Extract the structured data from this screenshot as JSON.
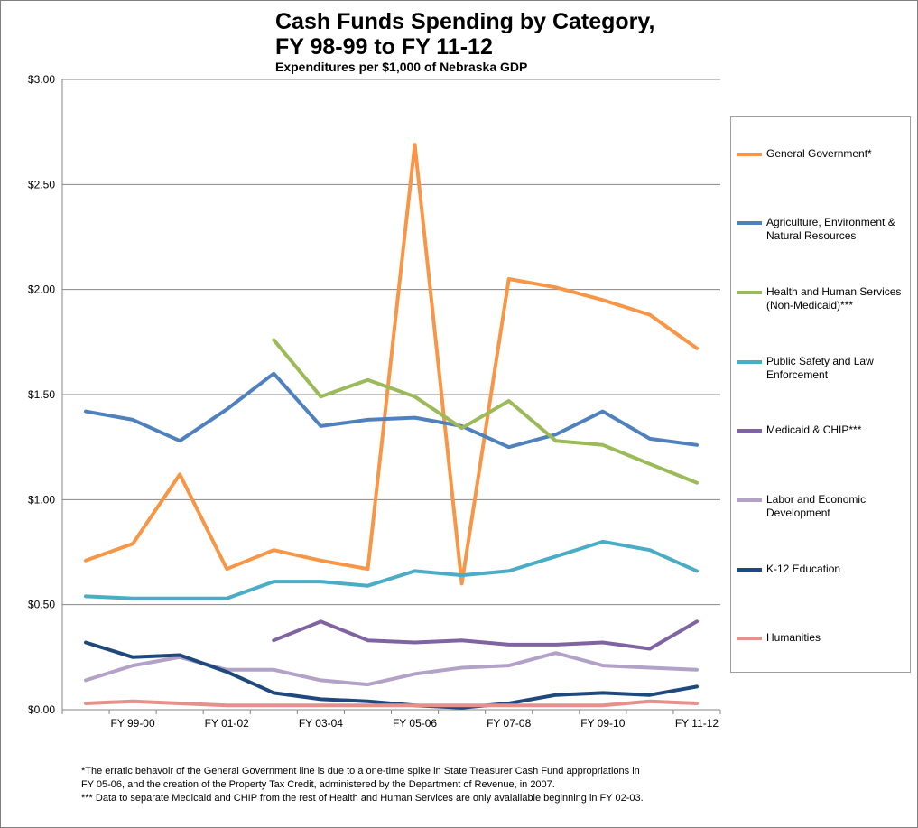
{
  "title_lines": [
    "Cash Funds Spending by Category,",
    "FY 98-99 to FY 11-12"
  ],
  "subtitle": "Expenditures per $1,000 of Nebraska GDP",
  "footnotes": [
    "*The erratic behavoir of the General Government line is due to a one-time spike in State Treasurer Cash Fund appropriations in",
    "FY 05-06, and the creation of the Property Tax Credit, administered by the Department of Revenue, in 2007.",
    "*** Data to separate Medicaid and CHIP from the rest of Health and Human Services are only avaiailable beginning in FY 02-03."
  ],
  "chart_data": {
    "type": "line",
    "x": [
      "FY 98-99",
      "FY 99-00",
      "FY 00-01",
      "FY 01-02",
      "FY 02-03",
      "FY 03-04",
      "FY 04-05",
      "FY 05-06",
      "FY 06-07",
      "FY 07-08",
      "FY 08-09",
      "FY 09-10",
      "FY 10-11",
      "FY 11-12"
    ],
    "x_tick_labels": [
      "FY 99-00",
      "FY 01-02",
      "FY 03-04",
      "FY 05-06",
      "FY 07-08",
      "FY 09-10",
      "FY 11-12"
    ],
    "y_tick_labels": [
      "$0.00",
      "$0.50",
      "$1.00",
      "$1.50",
      "$2.00",
      "$2.50",
      "$3.00"
    ],
    "ylim": [
      0,
      3
    ],
    "grid": true,
    "legend_position": "right",
    "series": [
      {
        "name": "General Government*",
        "color": "#f79646",
        "values": [
          0.71,
          0.79,
          1.12,
          0.67,
          0.76,
          0.71,
          0.67,
          2.69,
          0.6,
          2.05,
          2.01,
          1.95,
          1.88,
          1.72
        ]
      },
      {
        "name": "Agriculture, Environment & Natural Resources",
        "color": "#4f81bd",
        "values": [
          1.42,
          1.38,
          1.28,
          1.43,
          1.6,
          1.35,
          1.38,
          1.39,
          1.35,
          1.25,
          1.31,
          1.42,
          1.29,
          1.26
        ]
      },
      {
        "name": "Health and Human Services (Non-Medicaid)***",
        "color": "#9bbb59",
        "values": [
          null,
          null,
          null,
          null,
          1.76,
          1.49,
          1.57,
          1.49,
          1.34,
          1.47,
          1.28,
          1.26,
          1.17,
          1.08
        ]
      },
      {
        "name": "Public Safety and Law Enforcement",
        "color": "#4bacc6",
        "values": [
          0.54,
          0.53,
          0.53,
          0.53,
          0.61,
          0.61,
          0.59,
          0.66,
          0.64,
          0.66,
          0.73,
          0.8,
          0.76,
          0.66
        ]
      },
      {
        "name": "Medicaid & CHIP***",
        "color": "#8064a2",
        "values": [
          null,
          null,
          null,
          null,
          0.33,
          0.42,
          0.33,
          0.32,
          0.33,
          0.31,
          0.31,
          0.32,
          0.29,
          0.42
        ]
      },
      {
        "name": "Labor and Economic Development",
        "color": "#b3a2c7",
        "values": [
          0.14,
          0.21,
          0.25,
          0.19,
          0.19,
          0.14,
          0.12,
          0.17,
          0.2,
          0.21,
          0.27,
          0.21,
          0.2,
          0.19
        ]
      },
      {
        "name": "K-12 Education",
        "color": "#1f497d",
        "values": [
          0.32,
          0.25,
          0.26,
          0.18,
          0.08,
          0.05,
          0.04,
          0.02,
          0.01,
          0.03,
          0.07,
          0.08,
          0.07,
          0.11
        ]
      },
      {
        "name": "Humanities",
        "color": "#e6908d",
        "values": [
          0.03,
          0.04,
          0.03,
          0.02,
          0.02,
          0.02,
          0.02,
          0.02,
          0.02,
          0.02,
          0.02,
          0.02,
          0.04,
          0.03
        ]
      }
    ]
  }
}
